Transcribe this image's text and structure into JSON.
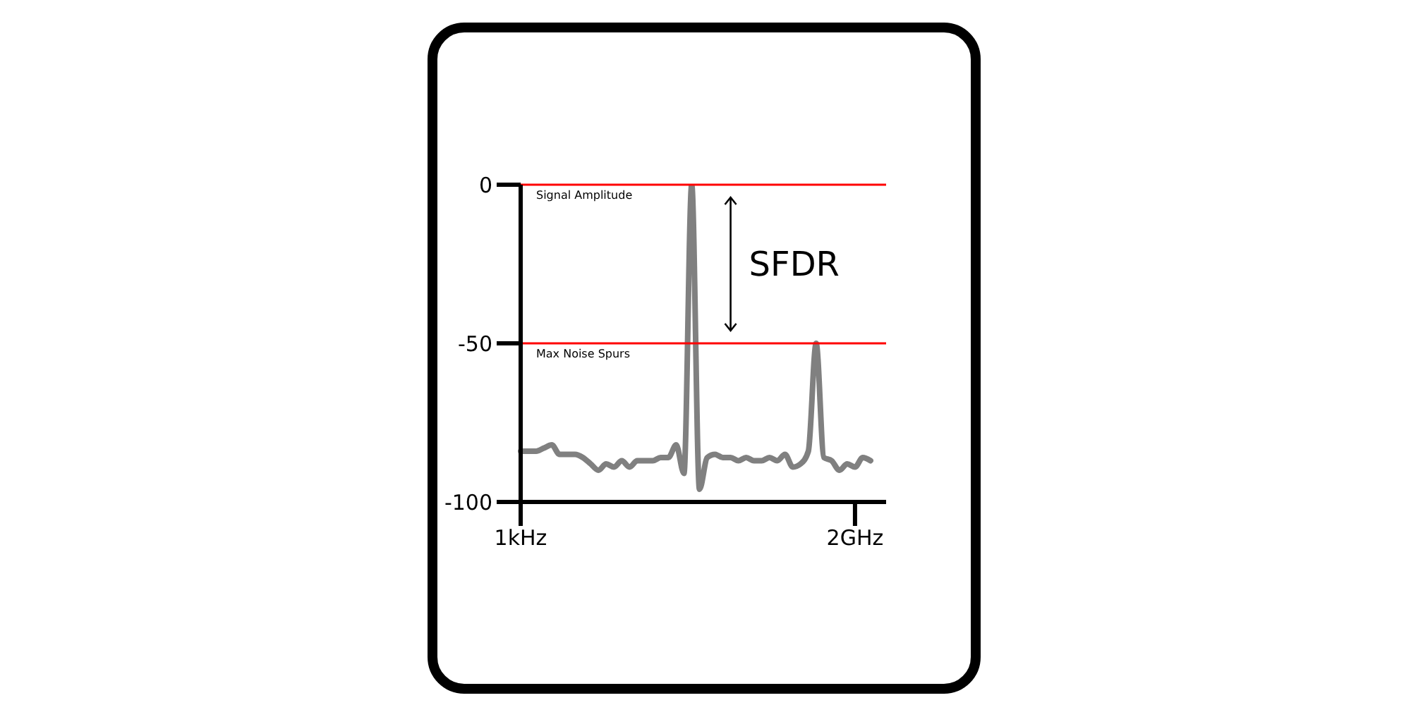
{
  "chart_data": {
    "type": "line",
    "categories": [
      "1kHz",
      null,
      null,
      null,
      null,
      null,
      null,
      null,
      null,
      null,
      null,
      null,
      null,
      null,
      null,
      null,
      null,
      null,
      null,
      null,
      null,
      null,
      null,
      null,
      null,
      null,
      null,
      null,
      null,
      null,
      null,
      null,
      null,
      null,
      null,
      null,
      null,
      null,
      null,
      null,
      null,
      null,
      null,
      "2GHz",
      null,
      null,
      null,
      null
    ],
    "series": [
      {
        "color": "#808080",
        "values": [
          -84,
          -84,
          -84,
          -83,
          -82,
          -85,
          -85,
          -85,
          -86,
          -88,
          -90,
          -88,
          -89,
          -87,
          -89,
          -87,
          -87,
          -87,
          -86,
          -86,
          -82,
          -91,
          0,
          -96,
          -86,
          -85,
          -86,
          -86,
          -87,
          -86,
          -87,
          -87,
          -86,
          -87,
          -85,
          -89,
          -88,
          -84,
          -50,
          -86,
          -87,
          -90,
          -88,
          -89,
          -86,
          -87,
          null,
          null
        ]
      }
    ],
    "ylim": [
      -100,
      0
    ],
    "yticks": [
      0,
      -50,
      -100
    ],
    "ref_lines": [
      {
        "axis": "y",
        "value": 0,
        "label": "Signal Amplitude",
        "color": "#ff0000"
      },
      {
        "axis": "y",
        "value": -50,
        "label": "Max Noise Spurs",
        "color": "#ff0000"
      }
    ],
    "annotations": [
      "SFDR"
    ]
  }
}
